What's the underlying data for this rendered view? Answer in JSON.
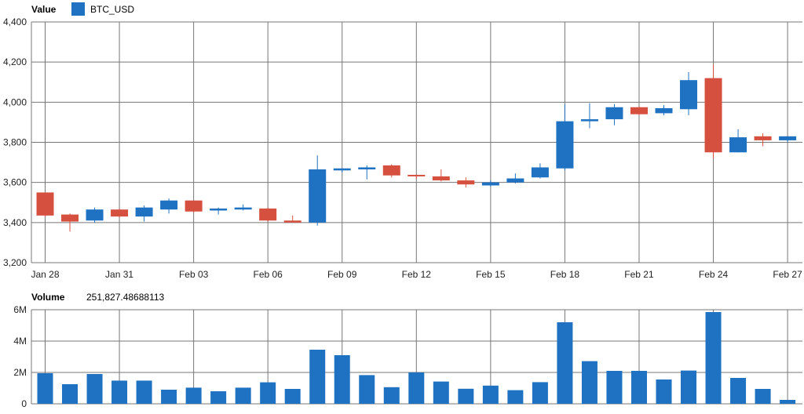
{
  "chart_data": [
    {
      "type": "candlestick",
      "header_label": "Value",
      "legend": [
        {
          "name": "BTC_USD",
          "color": "#1f72c1"
        }
      ],
      "ylim": [
        3200,
        4400
      ],
      "y_ticks": [
        "3,200",
        "3,400",
        "3,600",
        "3,800",
        "4,000",
        "4,200",
        "4,400"
      ],
      "x_ticks": [
        "Jan 28",
        "Jan 31",
        "Feb 03",
        "Feb 06",
        "Feb 09",
        "Feb 12",
        "Feb 15",
        "Feb 18",
        "Feb 21",
        "Feb 24",
        "Feb 27"
      ],
      "categories": [
        "Jan 28",
        "Jan 29",
        "Jan 30",
        "Jan 31",
        "Feb 01",
        "Feb 02",
        "Feb 03",
        "Feb 04",
        "Feb 05",
        "Feb 06",
        "Feb 07",
        "Feb 08",
        "Feb 09",
        "Feb 10",
        "Feb 11",
        "Feb 12",
        "Feb 13",
        "Feb 14",
        "Feb 15",
        "Feb 16",
        "Feb 17",
        "Feb 18",
        "Feb 19",
        "Feb 20",
        "Feb 21",
        "Feb 22",
        "Feb 23",
        "Feb 24",
        "Feb 25",
        "Feb 26",
        "Feb 27"
      ],
      "up_color": "#1f72c1",
      "down_color": "#d65040",
      "candles": [
        {
          "open": 3550,
          "high": 3550,
          "low": 3430,
          "close": 3435
        },
        {
          "open": 3440,
          "high": 3445,
          "low": 3355,
          "close": 3405
        },
        {
          "open": 3410,
          "high": 3475,
          "low": 3400,
          "close": 3465
        },
        {
          "open": 3465,
          "high": 3470,
          "low": 3425,
          "close": 3430
        },
        {
          "open": 3430,
          "high": 3485,
          "low": 3405,
          "close": 3475
        },
        {
          "open": 3465,
          "high": 3520,
          "low": 3445,
          "close": 3510
        },
        {
          "open": 3510,
          "high": 3510,
          "low": 3450,
          "close": 3455
        },
        {
          "open": 3460,
          "high": 3475,
          "low": 3440,
          "close": 3470
        },
        {
          "open": 3465,
          "high": 3490,
          "low": 3460,
          "close": 3475
        },
        {
          "open": 3470,
          "high": 3475,
          "low": 3405,
          "close": 3410
        },
        {
          "open": 3410,
          "high": 3435,
          "low": 3400,
          "close": 3400
        },
        {
          "open": 3400,
          "high": 3735,
          "low": 3385,
          "close": 3665
        },
        {
          "open": 3660,
          "high": 3670,
          "low": 3650,
          "close": 3670
        },
        {
          "open": 3665,
          "high": 3685,
          "low": 3615,
          "close": 3675
        },
        {
          "open": 3685,
          "high": 3690,
          "low": 3625,
          "close": 3635
        },
        {
          "open": 3638,
          "high": 3640,
          "low": 3618,
          "close": 3632
        },
        {
          "open": 3630,
          "high": 3665,
          "low": 3605,
          "close": 3610
        },
        {
          "open": 3610,
          "high": 3625,
          "low": 3575,
          "close": 3590
        },
        {
          "open": 3585,
          "high": 3610,
          "low": 3580,
          "close": 3600
        },
        {
          "open": 3600,
          "high": 3645,
          "low": 3595,
          "close": 3620
        },
        {
          "open": 3625,
          "high": 3695,
          "low": 3620,
          "close": 3675
        },
        {
          "open": 3670,
          "high": 3990,
          "low": 3660,
          "close": 3905
        },
        {
          "open": 3905,
          "high": 3995,
          "low": 3870,
          "close": 3915
        },
        {
          "open": 3915,
          "high": 3990,
          "low": 3885,
          "close": 3975
        },
        {
          "open": 3975,
          "high": 3980,
          "low": 3935,
          "close": 3940
        },
        {
          "open": 3945,
          "high": 3985,
          "low": 3935,
          "close": 3970
        },
        {
          "open": 3965,
          "high": 4150,
          "low": 3935,
          "close": 4110
        },
        {
          "open": 4120,
          "high": 4190,
          "low": 3720,
          "close": 3750
        },
        {
          "open": 3750,
          "high": 3865,
          "low": 3750,
          "close": 3825
        },
        {
          "open": 3830,
          "high": 3845,
          "low": 3780,
          "close": 3810
        },
        {
          "open": 3810,
          "high": 3830,
          "low": 3800,
          "close": 3830
        }
      ]
    },
    {
      "type": "bar",
      "header_label": "Volume",
      "header_value": "251,827.48688113",
      "ylim": [
        0,
        6000000
      ],
      "y_ticks": [
        "0",
        "2M",
        "4M",
        "6M"
      ],
      "bar_color": "#1f72c1",
      "categories": [
        "Jan 28",
        "Jan 29",
        "Jan 30",
        "Jan 31",
        "Feb 01",
        "Feb 02",
        "Feb 03",
        "Feb 04",
        "Feb 05",
        "Feb 06",
        "Feb 07",
        "Feb 08",
        "Feb 09",
        "Feb 10",
        "Feb 11",
        "Feb 12",
        "Feb 13",
        "Feb 14",
        "Feb 15",
        "Feb 16",
        "Feb 17",
        "Feb 18",
        "Feb 19",
        "Feb 20",
        "Feb 21",
        "Feb 22",
        "Feb 23",
        "Feb 24",
        "Feb 25",
        "Feb 26",
        "Feb 27"
      ],
      "values": [
        1950000,
        1250000,
        1900000,
        1480000,
        1480000,
        900000,
        1030000,
        800000,
        1030000,
        1370000,
        950000,
        3450000,
        3100000,
        1830000,
        1060000,
        2000000,
        1420000,
        960000,
        1160000,
        870000,
        1380000,
        5200000,
        2720000,
        2100000,
        2100000,
        1550000,
        2120000,
        5850000,
        1650000,
        950000,
        250000
      ]
    }
  ]
}
